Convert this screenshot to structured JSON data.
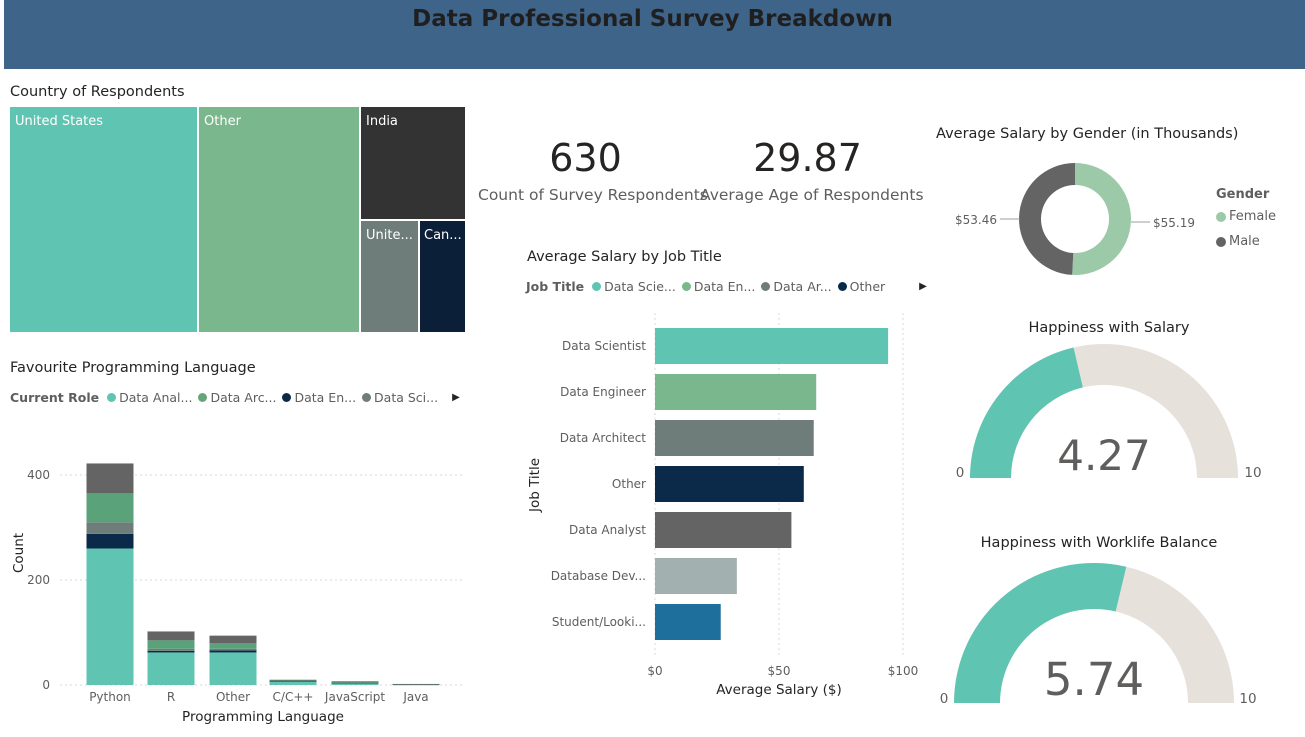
{
  "header": {
    "title": "Data Professional Survey Breakdown"
  },
  "kpis": [
    {
      "value": "630",
      "label": "Count of Survey Respondents"
    },
    {
      "value": "29.87",
      "label": "Average Age of Respondents"
    }
  ],
  "colors": {
    "header_bg": "#3f648a",
    "teal": "#5fc5b2",
    "green": "#7ab78d",
    "dark": "#333333",
    "slate": "#6e7c7a",
    "navy": "#0b2a4a",
    "gray": "#646464",
    "lightgray": "#a2b0b0",
    "blue": "#1f6f9c",
    "gauge_bg": "#e6e1db",
    "female": "#9ccaa8",
    "male": "#646464"
  },
  "chart_data": [
    {
      "id": "country",
      "type": "treemap",
      "title": "Country of Respondents",
      "items": [
        {
          "label": "United States",
          "color": "#5fc5b2"
        },
        {
          "label": "Other",
          "color": "#7ab78d"
        },
        {
          "label": "India",
          "color": "#333333"
        },
        {
          "label": "Unite...",
          "color": "#6e7c7a"
        },
        {
          "label": "Can...",
          "color": "#0b1f38"
        }
      ]
    },
    {
      "id": "languages",
      "type": "bar",
      "stacked": true,
      "title": "Favourite Programming Language",
      "legend_title": "Current Role",
      "legend": [
        {
          "name": "Data Anal...",
          "color": "#5fc5b2"
        },
        {
          "name": "Data Arc...",
          "color": "#66a57c"
        },
        {
          "name": "Data En...",
          "color": "#0b2a4a"
        },
        {
          "name": "Data Sci...",
          "color": "#6e7c7a"
        }
      ],
      "categories": [
        "Python",
        "R",
        "Other",
        "C/C++",
        "JavaScript",
        "Java"
      ],
      "series": [
        {
          "color": "#5fc5b2",
          "values": [
            260,
            62,
            62,
            7,
            4,
            1
          ]
        },
        {
          "color": "#0b2a4a",
          "values": [
            28,
            3,
            4,
            0.5,
            0.5,
            0
          ]
        },
        {
          "color": "#6e7c7a",
          "values": [
            22,
            4,
            3,
            0.5,
            0.5,
            0
          ]
        },
        {
          "color": "#5aa37a",
          "values": [
            55,
            16,
            11,
            1,
            1,
            0.5
          ]
        },
        {
          "color": "#646464",
          "values": [
            57,
            17,
            14,
            1,
            1,
            0.5
          ]
        }
      ],
      "xlabel": "Programming Language",
      "ylabel": "Count",
      "ylim": [
        0,
        400
      ],
      "yticks": [
        0,
        200,
        400
      ]
    },
    {
      "id": "salary_job",
      "type": "bar",
      "orientation": "horizontal",
      "title": "Average Salary by Job Title",
      "legend_title": "Job Title",
      "legend": [
        {
          "name": "Data Scie...",
          "color": "#5fc5b2"
        },
        {
          "name": "Data En...",
          "color": "#7ab78d"
        },
        {
          "name": "Data Ar...",
          "color": "#6e7c7a"
        },
        {
          "name": "Other",
          "color": "#0b2a4a"
        }
      ],
      "categories": [
        "Data Scientist",
        "Data Engineer",
        "Data Architect",
        "Other",
        "Data Analyst",
        "Database Dev...",
        "Student/Looki..."
      ],
      "values": [
        94,
        65,
        64,
        60,
        55,
        33,
        26.5
      ],
      "colors": [
        "#5fc5b2",
        "#7ab78d",
        "#6e7c7a",
        "#0b2a4a",
        "#646464",
        "#a2b0b0",
        "#1f6f9c"
      ],
      "xlabel": "Average Salary ($)",
      "ylabel": "Job Title",
      "xlim": [
        0,
        100
      ],
      "xticks": [
        {
          "v": 0,
          "label": "$0"
        },
        {
          "v": 50,
          "label": "$50"
        },
        {
          "v": 100,
          "label": "$100"
        }
      ]
    },
    {
      "id": "salary_gender",
      "type": "pie",
      "donut": true,
      "title": "Average Salary by Gender (in Thousands)",
      "legend_title": "Gender",
      "slices": [
        {
          "name": "Female",
          "value": 55.19,
          "label": "$55.19",
          "color": "#9ccaa8"
        },
        {
          "name": "Male",
          "value": 53.46,
          "label": "$53.46",
          "color": "#646464"
        }
      ]
    },
    {
      "id": "happy_salary",
      "type": "gauge",
      "title": "Happiness with Salary",
      "value": 4.27,
      "value_label": "4.27",
      "min": 0,
      "max": 10,
      "min_label": "0",
      "max_label": "10"
    },
    {
      "id": "happy_worklife",
      "type": "gauge",
      "title": "Happiness with Worklife Balance",
      "value": 5.74,
      "value_label": "5.74",
      "min": 0,
      "max": 10,
      "min_label": "0",
      "max_label": "10"
    }
  ]
}
